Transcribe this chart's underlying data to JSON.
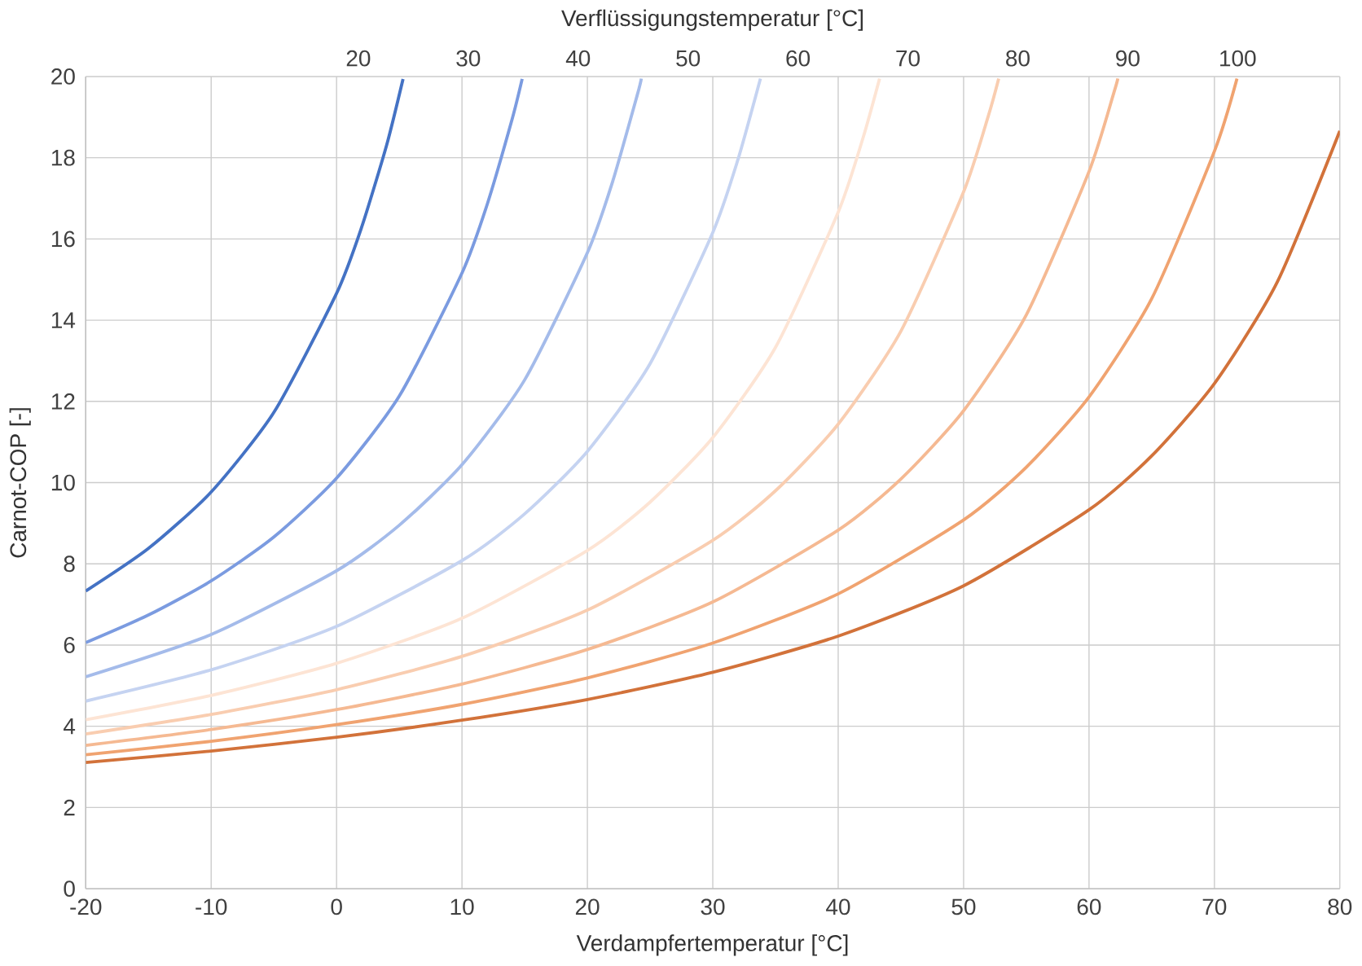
{
  "chart_data": {
    "type": "line",
    "xlabel": "Verdampfertemperatur [°C]",
    "ylabel": "Carnot-COP [-]",
    "x2label": "Verflüssigungstemperatur [°C]",
    "xlim": [
      -20,
      80
    ],
    "xticks": [
      -20,
      -10,
      0,
      10,
      20,
      30,
      40,
      50,
      60,
      70,
      80
    ],
    "ylim": [
      0,
      20
    ],
    "yticks": [
      0,
      2,
      4,
      6,
      8,
      10,
      12,
      14,
      16,
      18,
      20
    ],
    "x2lim": [
      -4.8,
      109.3
    ],
    "x2ticks": [
      20,
      30,
      40,
      50,
      60,
      70,
      80,
      90,
      100
    ],
    "grid": true,
    "marker": "none",
    "line_style": "solid",
    "series": [
      {
        "color": "#4472c4",
        "x": [
          -20,
          -15,
          -10,
          -5,
          0,
          2,
          4,
          5.3
        ],
        "values": [
          7.33,
          8.38,
          9.77,
          11.73,
          14.66,
          16.29,
          18.32,
          19.94
        ]
      },
      {
        "color": "#7b9be0",
        "x": [
          -20,
          -15,
          -10,
          -5,
          0,
          5,
          10,
          12,
          14,
          14.8
        ],
        "values": [
          6.06,
          6.74,
          7.58,
          8.66,
          10.11,
          12.13,
          15.16,
          16.84,
          18.95,
          19.94
        ]
      },
      {
        "color": "#a4bbea",
        "x": [
          -20,
          -10,
          0,
          5,
          10,
          15,
          20,
          22,
          24,
          24.3
        ],
        "values": [
          5.22,
          6.26,
          7.83,
          8.95,
          10.44,
          12.53,
          15.66,
          17.4,
          19.57,
          19.95
        ]
      },
      {
        "color": "#c5d3f1",
        "x": [
          -20,
          -10,
          0,
          10,
          15,
          20,
          25,
          30,
          32,
          33.8
        ],
        "values": [
          4.62,
          5.39,
          6.46,
          8.08,
          9.23,
          10.77,
          12.93,
          16.16,
          17.95,
          19.95
        ]
      },
      {
        "color": "#fde4d4",
        "x": [
          -20,
          -10,
          0,
          10,
          20,
          25,
          30,
          35,
          40,
          42,
          43.3
        ],
        "values": [
          4.16,
          4.76,
          5.55,
          6.66,
          8.33,
          9.52,
          11.11,
          13.33,
          16.66,
          18.51,
          19.95
        ]
      },
      {
        "color": "#f9cdb0",
        "x": [
          -20,
          -10,
          0,
          10,
          20,
          30,
          35,
          40,
          45,
          50,
          52,
          52.8
        ],
        "values": [
          3.81,
          4.29,
          4.9,
          5.72,
          6.86,
          8.58,
          9.8,
          11.44,
          13.73,
          17.16,
          19.06,
          19.95
        ]
      },
      {
        "color": "#f5b992",
        "x": [
          -20,
          -10,
          0,
          10,
          20,
          30,
          40,
          45,
          50,
          55,
          60,
          62,
          62.3
        ],
        "values": [
          3.53,
          3.92,
          4.41,
          5.04,
          5.89,
          7.06,
          8.83,
          10.09,
          11.77,
          14.13,
          17.66,
          19.62,
          19.95
        ]
      },
      {
        "color": "#f0a370",
        "x": [
          -20,
          -10,
          0,
          10,
          20,
          30,
          40,
          50,
          55,
          60,
          65,
          70,
          71.8
        ],
        "values": [
          3.3,
          3.63,
          4.04,
          4.54,
          5.19,
          6.05,
          7.26,
          9.08,
          10.38,
          12.11,
          14.53,
          18.16,
          19.95
        ]
      },
      {
        "color": "#d2723a",
        "x": [
          -20,
          -10,
          0,
          10,
          20,
          30,
          40,
          50,
          60,
          65,
          70,
          75,
          80
        ],
        "values": [
          3.11,
          3.39,
          3.73,
          4.15,
          4.66,
          5.33,
          6.22,
          7.46,
          9.33,
          10.66,
          12.44,
          14.93,
          18.66
        ]
      }
    ]
  }
}
